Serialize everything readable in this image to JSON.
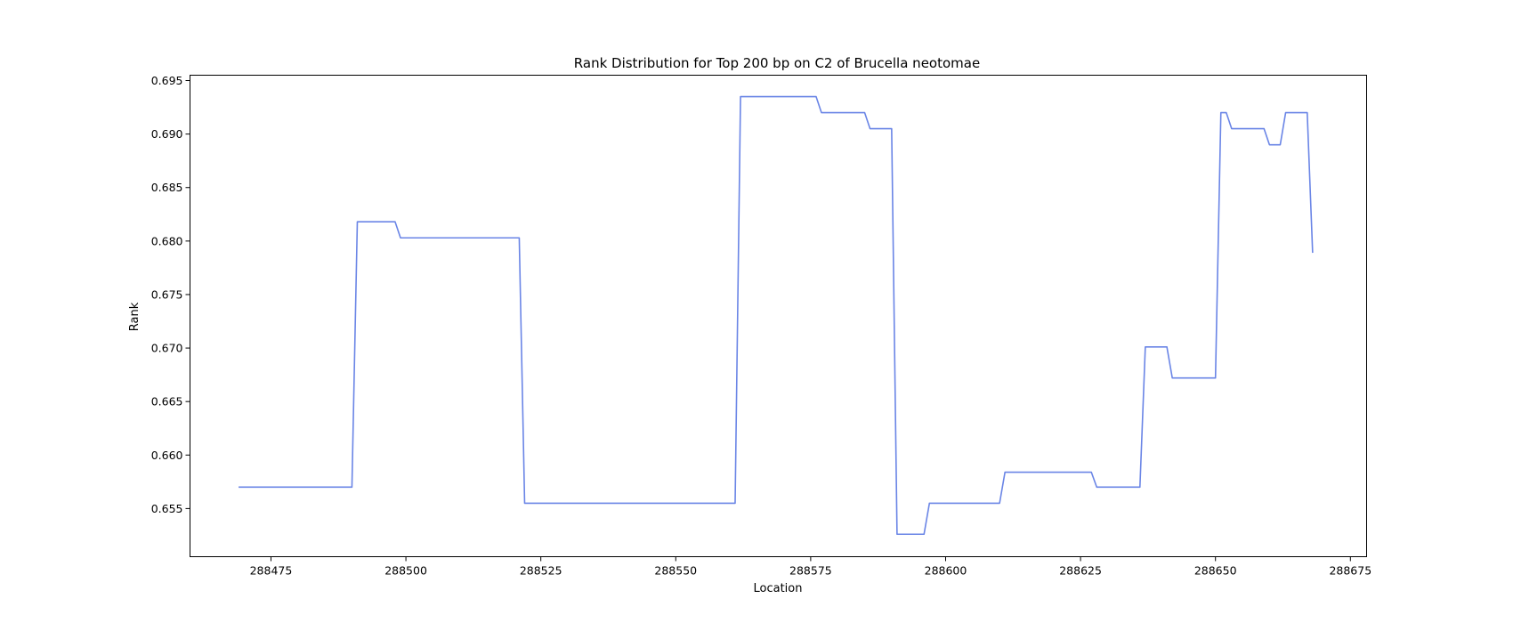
{
  "chart_data": {
    "type": "line",
    "title": "Rank Distribution for Top 200 bp on C2 of Brucella neotomae",
    "xlabel": "Location",
    "ylabel": "Rank",
    "xlim": [
      288460,
      288678
    ],
    "ylim": [
      0.6505,
      0.6955
    ],
    "xticks": [
      288475,
      288500,
      288525,
      288550,
      288575,
      288600,
      288625,
      288650,
      288675
    ],
    "xtick_labels": [
      "288475",
      "288500",
      "288525",
      "288550",
      "288575",
      "288600",
      "288625",
      "288650",
      "288675"
    ],
    "yticks": [
      0.655,
      0.66,
      0.665,
      0.67,
      0.675,
      0.68,
      0.685,
      0.69,
      0.695
    ],
    "ytick_labels": [
      "0.655",
      "0.660",
      "0.665",
      "0.670",
      "0.675",
      "0.680",
      "0.685",
      "0.690",
      "0.695"
    ],
    "grid": false,
    "line_color": "#6a85e6",
    "series": [
      {
        "x": [
          288469,
          288490,
          288491,
          288498,
          288499,
          288521,
          288522,
          288561,
          288562,
          288576,
          288577,
          288585,
          288586,
          288590,
          288591,
          288596,
          288597,
          288610,
          288611,
          288627,
          288628,
          288636,
          288637,
          288641,
          288642,
          288650,
          288651,
          288652,
          288653,
          288659,
          288660,
          288662,
          288663,
          288667,
          288668
        ],
        "y": [
          0.657,
          0.657,
          0.6818,
          0.6818,
          0.6803,
          0.6803,
          0.6555,
          0.6555,
          0.6935,
          0.6935,
          0.692,
          0.692,
          0.6905,
          0.6905,
          0.6526,
          0.6526,
          0.6555,
          0.6555,
          0.6584,
          0.6584,
          0.657,
          0.657,
          0.6701,
          0.6701,
          0.6672,
          0.6672,
          0.692,
          0.692,
          0.6905,
          0.6905,
          0.689,
          0.689,
          0.692,
          0.692,
          0.6789
        ]
      }
    ]
  }
}
